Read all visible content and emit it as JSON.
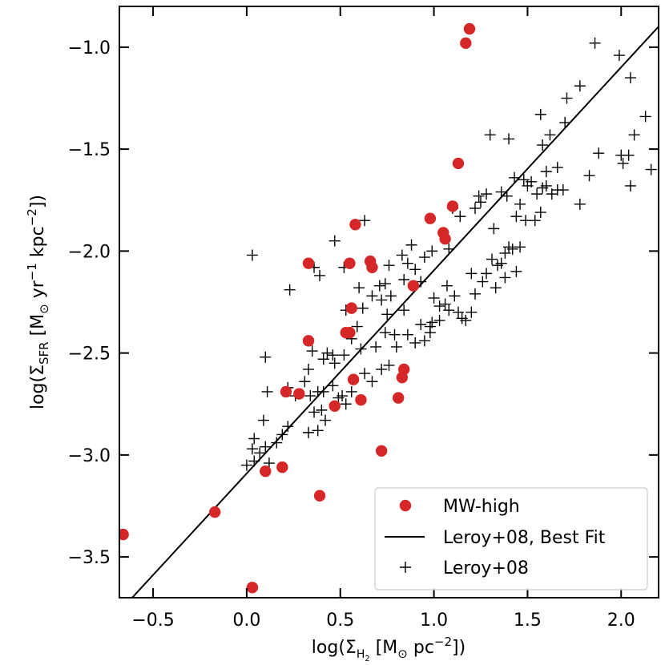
{
  "chart_data": {
    "type": "scatter",
    "xlabel": "log(Σ_H2 [M⊙ pc^-2])",
    "ylabel": "log(Σ_SFR [M⊙ yr^-1 kpc^-2])",
    "xlim": [
      -0.68,
      2.2
    ],
    "ylim": [
      -3.7,
      -0.8
    ],
    "xticks": [
      -0.5,
      0.0,
      0.5,
      1.0,
      1.5,
      2.0
    ],
    "xtick_labels": [
      "−0.5",
      "0.0",
      "0.5",
      "1.0",
      "1.5",
      "2.0"
    ],
    "yticks": [
      -1.0,
      -1.5,
      -2.0,
      -2.5,
      -3.0,
      -3.5
    ],
    "ytick_labels": [
      "−1.0",
      "−1.5",
      "−2.0",
      "−2.5",
      "−3.0",
      "−3.5"
    ],
    "legend_position": "bottom-right",
    "legend": {
      "mw": "MW-high",
      "fit": "Leroy+08, Best Fit",
      "leroy": "Leroy+08"
    },
    "colors": {
      "mw": "#d62728",
      "fit": "#000000",
      "leroy": "#000000"
    },
    "series": [
      {
        "name": "MW-high",
        "marker": "circle",
        "points": [
          [
            1.19,
            -0.91
          ],
          [
            1.17,
            -0.98
          ],
          [
            1.13,
            -1.57
          ],
          [
            1.1,
            -1.78
          ],
          [
            0.98,
            -1.84
          ],
          [
            0.58,
            -1.87
          ],
          [
            1.05,
            -1.91
          ],
          [
            1.06,
            -1.94
          ],
          [
            0.33,
            -2.06
          ],
          [
            0.55,
            -2.06
          ],
          [
            0.66,
            -2.05
          ],
          [
            0.67,
            -2.08
          ],
          [
            0.89,
            -2.17
          ],
          [
            0.56,
            -2.28
          ],
          [
            0.53,
            -2.4
          ],
          [
            0.55,
            -2.4
          ],
          [
            0.33,
            -2.44
          ],
          [
            0.57,
            -2.63
          ],
          [
            0.84,
            -2.58
          ],
          [
            0.83,
            -2.62
          ],
          [
            0.21,
            -2.69
          ],
          [
            0.28,
            -2.7
          ],
          [
            0.81,
            -2.72
          ],
          [
            0.61,
            -2.73
          ],
          [
            0.47,
            -2.76
          ],
          [
            0.72,
            -2.98
          ],
          [
            0.19,
            -3.06
          ],
          [
            0.1,
            -3.08
          ],
          [
            0.39,
            -3.2
          ],
          [
            -0.17,
            -3.28
          ],
          [
            -0.66,
            -3.39
          ],
          [
            0.03,
            -3.65
          ]
        ]
      },
      {
        "name": "Leroy+08",
        "marker": "plus",
        "points": [
          [
            0.03,
            -2.02
          ],
          [
            0.23,
            -2.19
          ],
          [
            0.36,
            -2.08
          ],
          [
            0.39,
            -2.12
          ],
          [
            0.47,
            -1.95
          ],
          [
            0.52,
            -2.08
          ],
          [
            0.63,
            -1.85
          ],
          [
            0.71,
            -2.17
          ],
          [
            0.76,
            -2.07
          ],
          [
            0.83,
            -2.02
          ],
          [
            0.84,
            -2.14
          ],
          [
            0.86,
            -2.06
          ],
          [
            0.9,
            -2.09
          ],
          [
            0.93,
            -2.15
          ],
          [
            1.0,
            -2.23
          ],
          [
            1.03,
            -2.27
          ],
          [
            1.07,
            -2.17
          ],
          [
            1.11,
            -2.22
          ],
          [
            1.03,
            -2.34
          ],
          [
            1.06,
            -2.26
          ],
          [
            1.08,
            -2.29
          ],
          [
            0.98,
            -2.4
          ],
          [
            0.98,
            -2.37
          ],
          [
            0.99,
            -2.35
          ],
          [
            1.13,
            -2.3
          ],
          [
            1.15,
            -2.33
          ],
          [
            1.17,
            -2.34
          ],
          [
            1.2,
            -2.3
          ],
          [
            1.22,
            -2.21
          ],
          [
            1.28,
            -2.11
          ],
          [
            1.31,
            -2.04
          ],
          [
            1.33,
            -2.18
          ],
          [
            1.36,
            -2.06
          ],
          [
            1.38,
            -2.01
          ],
          [
            1.4,
            -1.98
          ],
          [
            1.42,
            -1.99
          ],
          [
            1.46,
            -1.98
          ],
          [
            1.44,
            -2.1
          ],
          [
            1.38,
            -2.13
          ],
          [
            1.34,
            -2.07
          ],
          [
            1.26,
            -2.15
          ],
          [
            1.2,
            -2.11
          ],
          [
            1.22,
            -1.79
          ],
          [
            1.24,
            -1.73
          ],
          [
            1.25,
            -1.76
          ],
          [
            1.28,
            -1.72
          ],
          [
            1.32,
            -1.89
          ],
          [
            1.36,
            -1.71
          ],
          [
            1.39,
            -1.73
          ],
          [
            1.43,
            -1.64
          ],
          [
            1.48,
            -1.65
          ],
          [
            1.5,
            -1.68
          ],
          [
            1.52,
            -1.66
          ],
          [
            1.55,
            -1.72
          ],
          [
            1.58,
            -1.69
          ],
          [
            1.6,
            -1.68
          ],
          [
            1.63,
            -1.72
          ],
          [
            1.66,
            -1.7
          ],
          [
            1.69,
            -1.7
          ],
          [
            1.6,
            -1.61
          ],
          [
            1.57,
            -1.81
          ],
          [
            1.54,
            -1.85
          ],
          [
            1.49,
            -1.85
          ],
          [
            1.46,
            -1.77
          ],
          [
            1.44,
            -1.83
          ],
          [
            1.3,
            -1.43
          ],
          [
            1.4,
            -1.45
          ],
          [
            1.58,
            -1.48
          ],
          [
            1.62,
            -1.43
          ],
          [
            1.7,
            -1.37
          ],
          [
            1.57,
            -1.33
          ],
          [
            1.71,
            -1.25
          ],
          [
            1.78,
            -1.19
          ],
          [
            1.86,
            -0.98
          ],
          [
            1.99,
            -1.04
          ],
          [
            2.05,
            -1.15
          ],
          [
            2.13,
            -1.34
          ],
          [
            2.07,
            -1.43
          ],
          [
            2.0,
            -1.53
          ],
          [
            2.01,
            -1.57
          ],
          [
            2.16,
            -1.6
          ],
          [
            2.04,
            -1.53
          ],
          [
            1.88,
            -1.52
          ],
          [
            1.83,
            -1.63
          ],
          [
            1.78,
            -1.77
          ],
          [
            1.66,
            -1.59
          ],
          [
            2.05,
            -1.68
          ],
          [
            1.08,
            -1.99
          ],
          [
            1.14,
            -1.83
          ],
          [
            1.1,
            -1.79
          ],
          [
            0.99,
            -2.0
          ],
          [
            0.95,
            -2.03
          ],
          [
            0.88,
            -1.97
          ],
          [
            0.74,
            -2.16
          ],
          [
            0.67,
            -2.22
          ],
          [
            0.6,
            -2.18
          ],
          [
            0.53,
            -2.29
          ],
          [
            0.59,
            -2.37
          ],
          [
            0.74,
            -2.4
          ],
          [
            0.79,
            -2.41
          ],
          [
            0.86,
            -2.41
          ],
          [
            0.9,
            -2.45
          ],
          [
            0.69,
            -2.47
          ],
          [
            0.61,
            -2.48
          ],
          [
            0.52,
            -2.51
          ],
          [
            0.46,
            -2.51
          ],
          [
            0.41,
            -2.53
          ],
          [
            0.35,
            -2.49
          ],
          [
            0.33,
            -2.58
          ],
          [
            0.22,
            -2.67
          ],
          [
            0.11,
            -2.69
          ],
          [
            0.26,
            -2.71
          ],
          [
            0.34,
            -2.71
          ],
          [
            0.41,
            -2.69
          ],
          [
            0.46,
            -2.66
          ],
          [
            0.51,
            -2.71
          ],
          [
            0.56,
            -2.69
          ],
          [
            0.67,
            -2.64
          ],
          [
            0.72,
            -2.58
          ],
          [
            0.76,
            -2.56
          ],
          [
            0.63,
            -2.6
          ],
          [
            0.49,
            -2.72
          ],
          [
            0.4,
            -2.78
          ],
          [
            0.36,
            -2.79
          ],
          [
            0.42,
            -2.83
          ],
          [
            0.53,
            -2.75
          ],
          [
            0.33,
            -2.89
          ],
          [
            0.38,
            -2.88
          ],
          [
            0.22,
            -2.86
          ],
          [
            0.09,
            -2.83
          ],
          [
            0.16,
            -2.94
          ],
          [
            0.19,
            -2.9
          ],
          [
            0.1,
            -2.96
          ],
          [
            0.07,
            -2.99
          ],
          [
            0.04,
            -2.92
          ],
          [
            0.03,
            -2.97
          ],
          [
            0.04,
            -3.03
          ],
          [
            0.0,
            -3.05
          ],
          [
            0.12,
            -3.04
          ],
          [
            0.43,
            -2.5
          ],
          [
            0.56,
            -2.43
          ],
          [
            0.62,
            -2.28
          ],
          [
            0.72,
            -2.24
          ],
          [
            0.77,
            -2.22
          ],
          [
            0.75,
            -2.31
          ],
          [
            0.84,
            -2.29
          ],
          [
            0.93,
            -2.36
          ],
          [
            0.95,
            -2.44
          ],
          [
            0.8,
            -2.47
          ],
          [
            0.47,
            -2.55
          ],
          [
            0.1,
            -2.52
          ],
          [
            0.38,
            -2.69
          ],
          [
            0.31,
            -2.64
          ]
        ]
      }
    ],
    "fit_line": {
      "name": "Leroy+08, Best Fit",
      "x": [
        -0.68,
        2.2
      ],
      "y": [
        -3.768,
        -0.899
      ]
    }
  }
}
